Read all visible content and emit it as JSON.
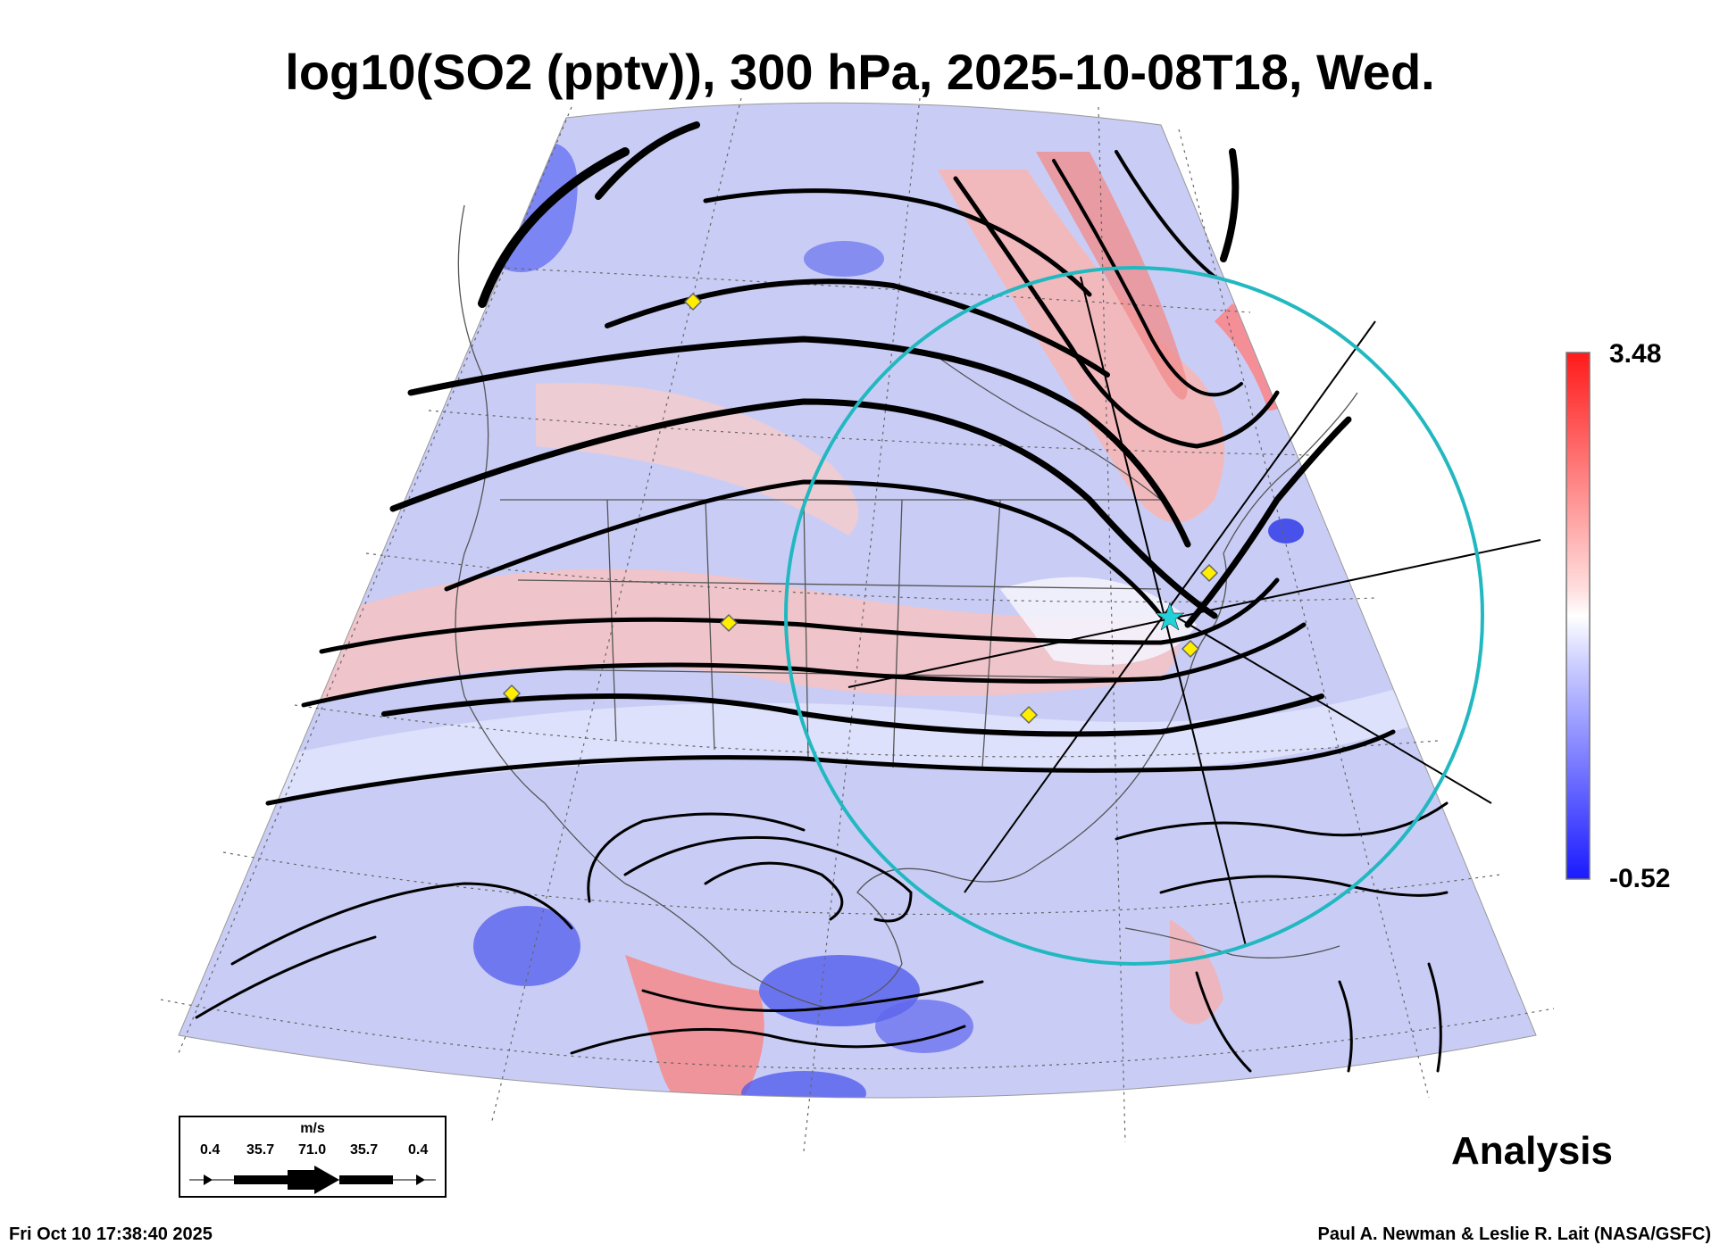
{
  "title": "log10(SO2 (pptv)), 300 hPa, 2025-10-08T18, Wed.",
  "colorbar": {
    "max_label": "3.48",
    "min_label": "-0.52",
    "max_color": "#ff1a1a",
    "mid_color": "#ffffff",
    "min_color": "#1a1aff"
  },
  "wind_legend": {
    "unit": "m/s",
    "ticks": [
      "0.4",
      "35.7",
      "71.0",
      "35.7",
      "0.4"
    ]
  },
  "analysis_label": "Analysis",
  "footer": {
    "timestamp": "Fri Oct 10 17:38:40 2025",
    "credit": "Paul A. Newman & Leslie R. Lait (NASA/GSFC)"
  },
  "markers": {
    "diamond_color": "#ffee00",
    "ring_color": "#22b8c0"
  }
}
